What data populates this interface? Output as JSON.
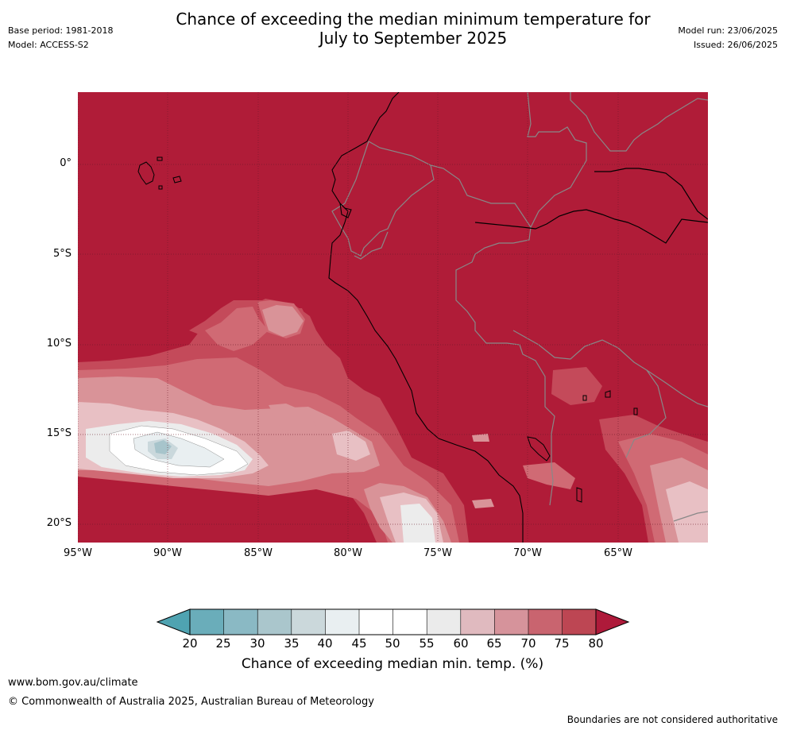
{
  "header": {
    "title_line1": "Chance of exceeding the median minimum temperature for",
    "title_line2": "July to September 2025",
    "base_period": "Base period: 1981-2018",
    "model": "Model: ACCESS-S2",
    "model_run": "Model run: 23/06/2025",
    "issued": "Issued: 26/06/2025"
  },
  "map": {
    "latitude_labels": [
      "0°",
      "5°S",
      "10°S",
      "15°S",
      "20°S"
    ],
    "longitude_labels": [
      "95°W",
      "90°W",
      "85°W",
      "80°W",
      "75°W",
      "70°W",
      "65°W"
    ],
    "colors": {
      "c80": "#b01c38",
      "c75": "#c44a5a",
      "c70": "#d06a74",
      "c65": "#d99398",
      "c60": "#e8c0c4",
      "c55": "#ececec",
      "c50": "#ffffff",
      "c45": "#e9eff1",
      "c40": "#cad8dc",
      "c35": "#a7c4cb",
      "country_border": "#888888",
      "coastline": "#000000"
    }
  },
  "colorbar": {
    "title": "Chance of exceeding median min. temp. (%)",
    "labels": [
      "20",
      "25",
      "30",
      "35",
      "40",
      "45",
      "50",
      "55",
      "60",
      "65",
      "70",
      "75",
      "80"
    ],
    "below_color": "#4fa3b1",
    "above_color": "#ae1a3a",
    "segment_colors": [
      "#6aadba",
      "#8ab9c4",
      "#aac6cc",
      "#cbd8db",
      "#e9eff1",
      "#ffffff",
      "#ffffff",
      "#ebebeb",
      "#e0babf",
      "#d6939b",
      "#c9646f",
      "#bd4653"
    ]
  },
  "footer": {
    "website": "www.bom.gov.au/climate",
    "copyright": "© Commonwealth of Australia 2025, Australian Bureau of Meteorology",
    "disclaimer": "Boundaries are not considered authoritative"
  }
}
